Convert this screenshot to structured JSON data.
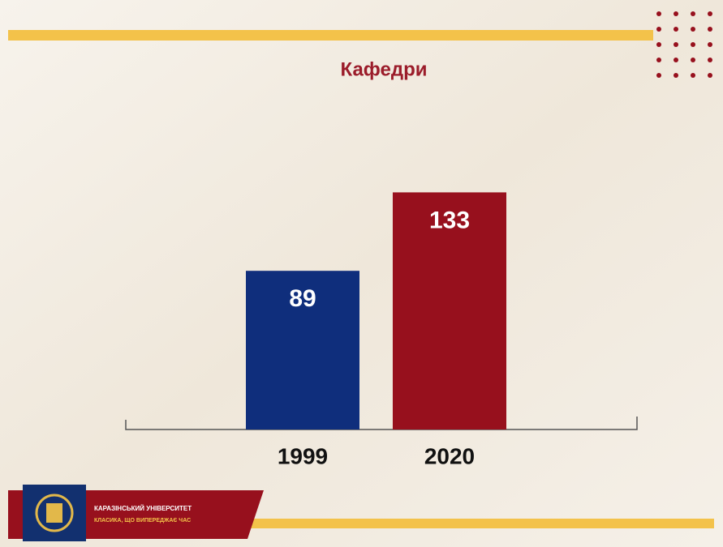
{
  "chart_data": {
    "type": "bar",
    "title": "Кафедри",
    "categories": [
      "1999",
      "2020"
    ],
    "values": [
      89,
      133
    ],
    "colors": [
      "#0f2e7c",
      "#97101d"
    ]
  },
  "footer": {
    "university": "КАРАЗІНСЬКИЙ УНІВЕРСИТЕТ",
    "slogan": "КЛАСИКА, ЩО ВИПЕРЕДЖАЄ ЧАС"
  }
}
